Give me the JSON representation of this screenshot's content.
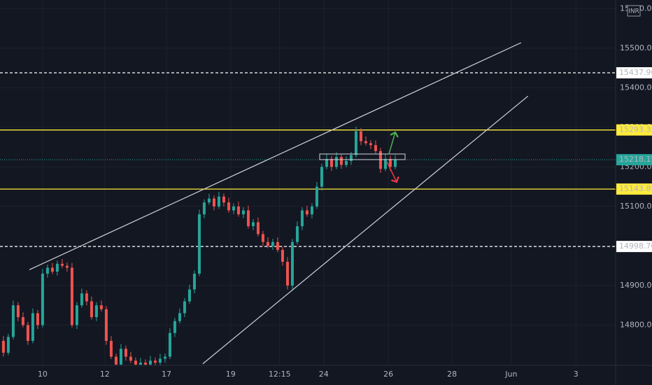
{
  "chart_data": {
    "type": "candlestick",
    "currency": "INR",
    "up_color": "#26a69a",
    "down_color": "#ef5350",
    "grid": true,
    "xlim": [
      -0.7,
      125
    ],
    "ylim": [
      14698,
      15622
    ],
    "xticks": [
      {
        "value": 8,
        "label": "10"
      },
      {
        "value": 20.7,
        "label": "12"
      },
      {
        "value": 33.3,
        "label": "17"
      },
      {
        "value": 46.4,
        "label": "19"
      },
      {
        "value": 56.4,
        "label": "12:15"
      },
      {
        "value": 65.4,
        "label": "24"
      },
      {
        "value": 78.6,
        "label": "26"
      },
      {
        "value": 91.6,
        "label": "28"
      },
      {
        "value": 103.7,
        "label": "Jun"
      },
      {
        "value": 116.9,
        "label": "3"
      }
    ],
    "yticks": [
      {
        "value": 14800,
        "label": "14800.00"
      },
      {
        "value": 14900,
        "label": "14900.00"
      },
      {
        "value": 15000,
        "label": "15000.00"
      },
      {
        "value": 15100,
        "label": "15100.00"
      },
      {
        "value": 15200,
        "label": "15200.00"
      },
      {
        "value": 15300,
        "label": "15300.00"
      },
      {
        "value": 15400,
        "label": "15400.00"
      },
      {
        "value": 15500,
        "label": "15500.00"
      },
      {
        "value": 15600,
        "label": "15600.00"
      }
    ],
    "open": [
      14760,
      14730,
      14770,
      14850,
      14820,
      14800,
      14760,
      14830,
      14800,
      14930,
      14945,
      14935,
      14955,
      14950,
      14945,
      14800,
      14850,
      14880,
      14860,
      14820,
      14850,
      14840,
      14760,
      14720,
      14700,
      14740,
      14720,
      14710,
      14700,
      14705,
      14700,
      14710,
      14705,
      14715,
      14720,
      14780,
      14810,
      14830,
      14860,
      14890,
      14930,
      15080,
      15110,
      15120,
      15100,
      15125,
      15110,
      15090,
      15100,
      15080,
      15090,
      15050,
      15060,
      15030,
      15010,
      15000,
      15010,
      14990,
      14960,
      14900,
      15010,
      15050,
      15090,
      15080,
      15100,
      15150,
      15200,
      15220,
      15200,
      15225,
      15205,
      15215,
      15230,
      15290,
      15265,
      15260,
      15255,
      15240,
      15195,
      15220,
      15200
    ],
    "high": [
      14772,
      14778,
      14862,
      14858,
      14832,
      14808,
      14842,
      14838,
      14942,
      14953,
      14957,
      14963,
      14967,
      14958,
      14957,
      14858,
      14892,
      14888,
      14872,
      14858,
      14862,
      14848,
      14772,
      14728,
      14752,
      14748,
      14732,
      14718,
      14717,
      14713,
      14722,
      14718,
      14727,
      14728,
      14792,
      14818,
      14842,
      14868,
      14902,
      14938,
      15092,
      15118,
      15132,
      15128,
      15137,
      15133,
      15122,
      15108,
      15112,
      15098,
      15102,
      15068,
      15072,
      15038,
      15022,
      15018,
      15022,
      14998,
      14972,
      15018,
      15062,
      15098,
      15102,
      15108,
      15162,
      15208,
      15232,
      15228,
      15237,
      15233,
      15227,
      15238,
      15302,
      15298,
      15277,
      15268,
      15267,
      15248,
      15232,
      15228,
      15230
    ],
    "low": [
      14720,
      14724,
      14764,
      14810,
      14794,
      14750,
      14754,
      14790,
      14794,
      14920,
      14929,
      14925,
      14944,
      14935,
      14794,
      14790,
      14844,
      14850,
      14814,
      14810,
      14834,
      14750,
      14714,
      14690,
      14694,
      14710,
      14704,
      14690,
      14694,
      14690,
      14694,
      14695,
      14699,
      14705,
      14714,
      14770,
      14804,
      14820,
      14854,
      14880,
      14924,
      15070,
      15104,
      15090,
      15094,
      15100,
      15084,
      15080,
      15074,
      15070,
      15044,
      15040,
      15024,
      15000,
      14994,
      14990,
      14984,
      14950,
      14890,
      14890,
      15004,
      15040,
      15074,
      15070,
      15094,
      15140,
      15194,
      15190,
      15194,
      15195,
      15199,
      15205,
      15224,
      15255,
      15254,
      15245,
      15234,
      15185,
      15189,
      15190,
      15194
    ],
    "close": [
      14730,
      14770,
      14850,
      14820,
      14800,
      14760,
      14830,
      14800,
      14930,
      14945,
      14935,
      14955,
      14950,
      14945,
      14800,
      14850,
      14880,
      14860,
      14820,
      14850,
      14840,
      14760,
      14720,
      14700,
      14740,
      14720,
      14710,
      14700,
      14705,
      14700,
      14710,
      14705,
      14715,
      14720,
      14780,
      14810,
      14830,
      14860,
      14890,
      14930,
      15080,
      15110,
      15120,
      15100,
      15125,
      15110,
      15090,
      15100,
      15080,
      15090,
      15050,
      15060,
      15030,
      15010,
      15000,
      15010,
      14990,
      14960,
      14900,
      15010,
      15050,
      15090,
      15080,
      15100,
      15150,
      15200,
      15220,
      15200,
      15225,
      15205,
      15215,
      15230,
      15290,
      15265,
      15260,
      15255,
      15240,
      15195,
      15220,
      15200,
      15218.15
    ],
    "levels": [
      {
        "value": 15437.9,
        "label": "15437.90",
        "color": "#ffffff",
        "text_color": "#131722",
        "style": "dashed"
      },
      {
        "value": 15293.35,
        "label": "15293.35",
        "color": "#ffeb3b",
        "text_color": "#131722",
        "style": "solid"
      },
      {
        "value": 15218.15,
        "label": "15218.15",
        "color": "#26a69a",
        "text_color": "#ffffff",
        "style": "dotted"
      },
      {
        "value": 15143.85,
        "label": "15143.85",
        "color": "#ffeb3b",
        "text_color": "#131722",
        "style": "solid"
      },
      {
        "value": 14998.7,
        "label": "14998.70",
        "color": "#ffffff",
        "text_color": "#131722",
        "style": "dashed"
      }
    ],
    "trendlines": [
      {
        "x": [
          5.3,
          105.7
        ],
        "y": [
          14940,
          15514
        ]
      },
      {
        "x": [
          40.7,
          107.1
        ],
        "y": [
          14702,
          15379
        ]
      }
    ]
  }
}
